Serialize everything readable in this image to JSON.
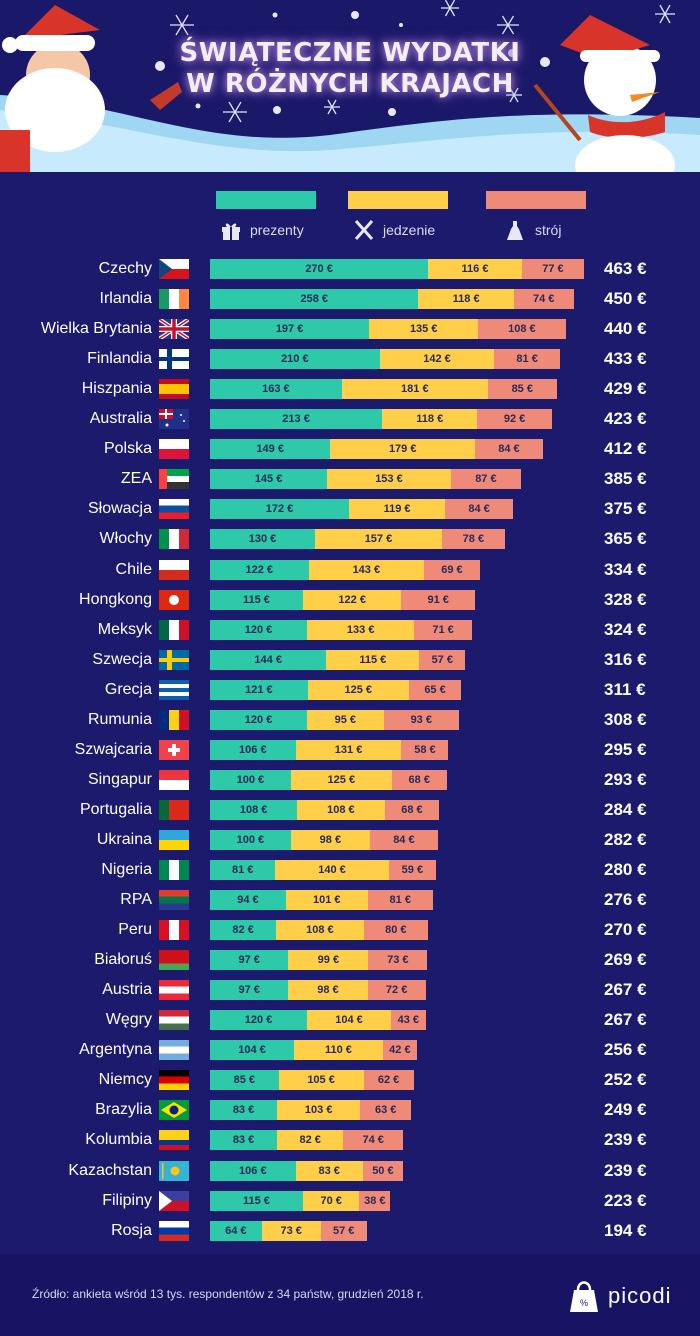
{
  "header": {
    "title_line1": "ŚWIĄTECZNE WYDATKI",
    "title_line2": "W RÓŻNYCH KRAJACH"
  },
  "colors": {
    "background": "#1c1a6c",
    "prezenty": "#2ec9a8",
    "jedzenie": "#ffcf4a",
    "stroj": "#f08a78"
  },
  "legend": [
    {
      "label": "prezenty",
      "icon": "gift-icon"
    },
    {
      "label": "jedzenie",
      "icon": "fork-knife-icon"
    },
    {
      "label": "strój",
      "icon": "dress-icon"
    }
  ],
  "chart_data": {
    "type": "bar",
    "orientation": "horizontal",
    "stacked": true,
    "title": "ŚWIĄTECZNE WYDATKI W RÓŻNYCH KRAJACH",
    "unit": "€",
    "categories": [
      "Czechy",
      "Irlandia",
      "Wielka Brytania",
      "Finlandia",
      "Hiszpania",
      "Australia",
      "Polska",
      "ZEA",
      "Słowacja",
      "Włochy",
      "Chile",
      "Hongkong",
      "Meksyk",
      "Szwecja",
      "Grecja",
      "Rumunia",
      "Szwajcaria",
      "Singapur",
      "Portugalia",
      "Ukraina",
      "Nigeria",
      "RPA",
      "Peru",
      "Białoruś",
      "Austria",
      "Węgry",
      "Argentyna",
      "Niemcy",
      "Brazylia",
      "Kolumbia",
      "Kazachstan",
      "Filipiny",
      "Rosja"
    ],
    "series": [
      {
        "name": "prezenty",
        "values": [
          270,
          258,
          197,
          210,
          163,
          213,
          149,
          145,
          172,
          130,
          122,
          115,
          120,
          144,
          121,
          120,
          106,
          100,
          108,
          100,
          81,
          94,
          82,
          97,
          97,
          120,
          104,
          85,
          83,
          83,
          106,
          115,
          64
        ]
      },
      {
        "name": "jedzenie",
        "values": [
          116,
          118,
          135,
          142,
          181,
          118,
          179,
          153,
          119,
          157,
          143,
          122,
          133,
          115,
          125,
          95,
          131,
          125,
          108,
          98,
          140,
          101,
          108,
          99,
          98,
          104,
          110,
          105,
          103,
          82,
          83,
          70,
          73
        ]
      },
      {
        "name": "strój",
        "values": [
          77,
          74,
          108,
          81,
          85,
          92,
          84,
          87,
          84,
          78,
          69,
          91,
          71,
          57,
          65,
          93,
          58,
          68,
          68,
          84,
          59,
          81,
          80,
          73,
          72,
          43,
          42,
          62,
          63,
          74,
          50,
          38,
          57
        ]
      }
    ],
    "totals": [
      463,
      450,
      440,
      433,
      429,
      423,
      412,
      385,
      375,
      365,
      334,
      328,
      324,
      316,
      311,
      308,
      295,
      293,
      284,
      282,
      280,
      276,
      270,
      269,
      267,
      267,
      256,
      252,
      249,
      239,
      239,
      223,
      194
    ],
    "data_labels": true,
    "legend_placement": "top"
  },
  "footer": {
    "source": "Źródło: ankieta wśród 13 tys. respondentów z 34 państw, grudzień 2018 r.",
    "brand": "picodi"
  }
}
